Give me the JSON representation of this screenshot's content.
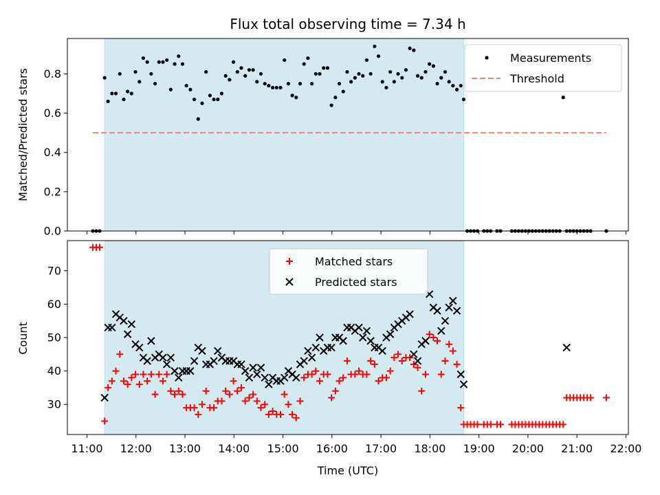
{
  "chart_data": [
    {
      "type": "scatter",
      "title": "Flux total observing time = 7.34 h",
      "ylabel": "Matched/Predicted stars",
      "xlim": [
        10.6,
        22.05
      ],
      "ylim": [
        0,
        0.98
      ],
      "yticks": [
        0.0,
        0.2,
        0.4,
        0.6,
        0.8
      ],
      "ytick_labels": [
        "0.0",
        "0.2",
        "0.4",
        "0.6",
        "0.8"
      ],
      "shaded_x_range": [
        11.36,
        18.69
      ],
      "shaded_color": "#d4eaf1",
      "legend_position": "top-right",
      "series": [
        {
          "name": "Measurements",
          "marker": "dot",
          "color": "#000000",
          "x": [
            11.12,
            11.19,
            11.26,
            11.36,
            11.43,
            11.51,
            11.59,
            11.67,
            11.75,
            11.83,
            11.91,
            11.99,
            12.07,
            12.15,
            12.23,
            12.31,
            12.39,
            12.47,
            12.55,
            12.63,
            12.71,
            12.79,
            12.87,
            12.95,
            13.03,
            13.11,
            13.19,
            13.27,
            13.35,
            13.43,
            13.51,
            13.59,
            13.67,
            13.75,
            13.83,
            13.91,
            13.99,
            14.07,
            14.15,
            14.23,
            14.31,
            14.39,
            14.47,
            14.55,
            14.63,
            14.71,
            14.79,
            14.87,
            14.95,
            15.03,
            15.11,
            15.19,
            15.27,
            15.35,
            15.43,
            15.51,
            15.59,
            15.67,
            15.75,
            15.83,
            15.91,
            15.99,
            16.07,
            16.15,
            16.23,
            16.31,
            16.39,
            16.47,
            16.55,
            16.63,
            16.71,
            16.79,
            16.87,
            16.95,
            17.03,
            17.11,
            17.19,
            17.27,
            17.35,
            17.43,
            17.51,
            17.59,
            17.67,
            17.75,
            17.83,
            17.91,
            17.99,
            18.07,
            18.15,
            18.23,
            18.31,
            18.39,
            18.47,
            18.55,
            18.63,
            18.69,
            18.76,
            18.83,
            18.9,
            18.97,
            19.1,
            19.17,
            19.24,
            19.37,
            19.44,
            19.67,
            19.74,
            19.81,
            19.88,
            19.95,
            20.02,
            20.09,
            20.16,
            20.23,
            20.3,
            20.37,
            20.44,
            20.51,
            20.58,
            20.65,
            20.72,
            20.79,
            20.86,
            20.93,
            21.0,
            21.07,
            21.14,
            21.21,
            21.28,
            21.6
          ],
          "y": [
            0,
            0,
            0,
            0.78,
            0.66,
            0.7,
            0.7,
            0.8,
            0.67,
            0.71,
            0.7,
            0.81,
            0.76,
            0.88,
            0.86,
            0.8,
            0.75,
            0.86,
            0.86,
            0.87,
            0.72,
            0.85,
            0.89,
            0.85,
            0.74,
            0.72,
            0.67,
            0.57,
            0.65,
            0.81,
            0.69,
            0.67,
            0.67,
            0.7,
            0.79,
            0.77,
            0.86,
            0.81,
            0.83,
            0.79,
            0.82,
            0.82,
            0.76,
            0.8,
            0.75,
            0.74,
            0.73,
            0.73,
            0.73,
            0.87,
            0.75,
            0.69,
            0.68,
            0.75,
            0.85,
            0.88,
            0.75,
            0.8,
            0.8,
            0.83,
            0.83,
            0.64,
            0.68,
            0.75,
            0.71,
            0.81,
            0.76,
            0.78,
            0.8,
            0.79,
            0.87,
            0.8,
            0.94,
            0.89,
            0.76,
            0.73,
            0.81,
            0.76,
            0.8,
            0.78,
            0.82,
            0.93,
            0.92,
            0.79,
            0.78,
            0.81,
            0.85,
            0.84,
            0.75,
            0.78,
            0.81,
            0.76,
            0.74,
            0.72,
            0.74,
            0.67,
            0,
            0,
            0,
            0,
            0,
            0,
            0,
            0,
            0,
            0,
            0,
            0,
            0,
            0,
            0,
            0,
            0,
            0,
            0,
            0,
            0,
            0,
            0,
            0,
            0.68,
            0,
            0,
            0,
            0,
            0,
            0,
            0,
            0,
            0
          ]
        },
        {
          "name": "Threshold",
          "type": "line",
          "style": "dashed",
          "color": "#f08080",
          "x": [
            11.12,
            21.6
          ],
          "y": [
            0.5,
            0.5
          ]
        }
      ]
    },
    {
      "type": "scatter",
      "xlabel": "Time (UTC)",
      "ylabel": "Count",
      "xlim": [
        10.6,
        22.05
      ],
      "ylim": [
        21,
        79
      ],
      "xticks": [
        11,
        12,
        13,
        14,
        15,
        16,
        17,
        18,
        19,
        20,
        21,
        22
      ],
      "xtick_labels": [
        "11:00",
        "12:00",
        "13:00",
        "14:00",
        "15:00",
        "16:00",
        "17:00",
        "18:00",
        "19:00",
        "20:00",
        "21:00",
        "22:00"
      ],
      "yticks": [
        30,
        40,
        50,
        60,
        70
      ],
      "ytick_labels": [
        "30",
        "40",
        "50",
        "60",
        "70"
      ],
      "shaded_x_range": [
        11.36,
        18.69
      ],
      "shaded_color": "#d4eaf1",
      "legend_position": "top-center",
      "series": [
        {
          "name": "Matched stars",
          "marker": "plus",
          "color": "#ff0000",
          "x": [
            11.12,
            11.19,
            11.26,
            11.36,
            11.43,
            11.51,
            11.59,
            11.67,
            11.75,
            11.83,
            11.91,
            11.99,
            12.07,
            12.15,
            12.23,
            12.31,
            12.39,
            12.47,
            12.55,
            12.63,
            12.71,
            12.79,
            12.87,
            12.95,
            13.03,
            13.11,
            13.19,
            13.27,
            13.35,
            13.43,
            13.51,
            13.59,
            13.67,
            13.75,
            13.83,
            13.91,
            13.99,
            14.07,
            14.15,
            14.23,
            14.31,
            14.39,
            14.47,
            14.55,
            14.63,
            14.71,
            14.79,
            14.87,
            14.95,
            15.03,
            15.11,
            15.19,
            15.27,
            15.35,
            15.43,
            15.51,
            15.59,
            15.67,
            15.75,
            15.83,
            15.91,
            15.99,
            16.07,
            16.15,
            16.23,
            16.31,
            16.39,
            16.47,
            16.55,
            16.63,
            16.71,
            16.79,
            16.87,
            16.95,
            17.03,
            17.11,
            17.19,
            17.27,
            17.35,
            17.43,
            17.51,
            17.59,
            17.67,
            17.75,
            17.83,
            17.91,
            17.99,
            18.07,
            18.15,
            18.23,
            18.31,
            18.39,
            18.47,
            18.55,
            18.63,
            18.69,
            18.76,
            18.83,
            18.9,
            18.97,
            19.1,
            19.17,
            19.24,
            19.37,
            19.44,
            19.67,
            19.74,
            19.81,
            19.88,
            19.95,
            20.02,
            20.09,
            20.16,
            20.23,
            20.3,
            20.37,
            20.44,
            20.51,
            20.58,
            20.65,
            20.72,
            20.79,
            20.86,
            20.93,
            21.0,
            21.07,
            21.14,
            21.21,
            21.28,
            21.6
          ],
          "y": [
            77,
            77,
            77,
            25,
            35,
            37,
            40,
            45,
            37,
            36,
            38,
            39,
            36,
            39,
            37,
            39,
            33,
            39,
            37,
            39,
            34,
            33,
            34,
            33,
            29,
            29,
            29,
            27,
            30,
            34,
            29,
            29,
            31,
            31,
            34,
            33,
            37,
            34,
            35,
            31,
            32,
            33,
            31,
            29,
            30,
            27,
            28,
            27,
            27,
            33,
            30,
            27,
            26,
            31,
            38,
            39,
            39,
            40,
            37,
            39,
            39,
            32,
            34,
            37,
            38,
            43,
            39,
            39,
            40,
            39,
            39,
            43,
            42,
            37,
            38,
            38,
            40,
            44,
            45,
            43,
            44,
            44,
            42,
            41,
            34,
            39,
            51,
            50,
            49,
            39,
            43,
            48,
            46,
            42,
            29,
            24,
            24,
            24,
            24,
            24,
            24,
            24,
            24,
            24,
            24,
            24,
            24,
            24,
            24,
            24,
            24,
            24,
            24,
            24,
            24,
            24,
            24,
            24,
            24,
            24,
            24,
            32,
            32,
            32,
            32,
            32,
            32,
            32,
            32,
            32
          ]
        },
        {
          "name": "Predicted stars",
          "marker": "x",
          "color": "#000000",
          "x": [
            11.36,
            11.43,
            11.51,
            11.59,
            11.67,
            11.75,
            11.83,
            11.91,
            11.99,
            12.07,
            12.15,
            12.23,
            12.31,
            12.39,
            12.47,
            12.55,
            12.63,
            12.71,
            12.79,
            12.87,
            12.95,
            13.03,
            13.11,
            13.19,
            13.27,
            13.35,
            13.43,
            13.51,
            13.59,
            13.67,
            13.75,
            13.83,
            13.91,
            13.99,
            14.07,
            14.15,
            14.23,
            14.31,
            14.39,
            14.47,
            14.55,
            14.63,
            14.71,
            14.79,
            14.87,
            14.95,
            15.03,
            15.11,
            15.19,
            15.27,
            15.35,
            15.43,
            15.51,
            15.59,
            15.67,
            15.75,
            15.83,
            15.91,
            15.99,
            16.07,
            16.15,
            16.23,
            16.31,
            16.39,
            16.47,
            16.55,
            16.63,
            16.71,
            16.79,
            16.87,
            16.95,
            17.03,
            17.11,
            17.19,
            17.27,
            17.35,
            17.43,
            17.51,
            17.59,
            17.67,
            17.75,
            17.83,
            17.91,
            17.99,
            18.07,
            18.15,
            18.23,
            18.31,
            18.39,
            18.47,
            18.55,
            18.63,
            18.69,
            20.79
          ],
          "y": [
            32,
            53,
            53,
            57,
            56,
            55,
            51,
            54,
            48,
            47,
            44,
            43,
            49,
            44,
            45,
            44,
            42,
            44,
            40,
            38,
            40,
            40,
            40,
            43,
            47,
            46,
            42,
            42,
            43,
            46,
            44,
            43,
            43,
            43,
            42,
            42,
            40,
            38,
            41,
            39,
            41,
            38,
            36,
            38,
            37,
            37,
            38,
            40,
            39,
            38,
            42,
            43,
            46,
            44,
            47,
            50,
            46,
            47,
            47,
            50,
            50,
            49,
            53,
            53,
            52,
            53,
            50,
            52,
            49,
            47,
            47,
            46,
            50,
            51,
            53,
            54,
            55,
            56,
            57,
            45,
            43,
            48,
            49,
            63,
            59,
            58,
            52,
            55,
            59,
            61,
            58,
            39,
            36,
            47
          ]
        }
      ]
    }
  ]
}
